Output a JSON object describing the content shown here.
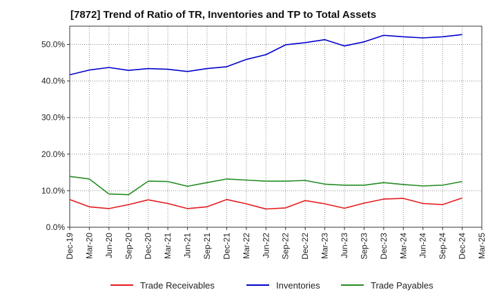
{
  "chart_data": {
    "type": "line",
    "title": "[7872]  Trend of Ratio of TR, Inventories and TP to Total Assets",
    "xlabel": "",
    "ylabel": "",
    "x": [
      "Dec-19",
      "Mar-20",
      "Jun-20",
      "Sep-20",
      "Dec-20",
      "Mar-21",
      "Jun-21",
      "Sep-21",
      "Dec-21",
      "Mar-22",
      "Jun-22",
      "Sep-22",
      "Dec-22",
      "Mar-23",
      "Jun-23",
      "Sep-23",
      "Dec-23",
      "Mar-24",
      "Jun-24",
      "Sep-24",
      "Dec-24",
      "Mar-25"
    ],
    "ylim": [
      0,
      55
    ],
    "yticks": [
      0,
      10,
      20,
      30,
      40,
      50
    ],
    "ytick_labels": [
      "0.0%",
      "10.0%",
      "20.0%",
      "30.0%",
      "40.0%",
      "50.0%"
    ],
    "grid": true,
    "legend_position": "bottom",
    "series": [
      {
        "name": "Trade Receivables",
        "color": "#e31a1c",
        "values": [
          7.6,
          5.6,
          5.1,
          6.2,
          7.5,
          6.5,
          5.1,
          5.6,
          7.6,
          6.4,
          5.0,
          5.3,
          7.3,
          6.4,
          5.2,
          6.6,
          7.7,
          7.9,
          6.5,
          6.2,
          8.0,
          null
        ]
      },
      {
        "name": "Inventories",
        "color": "#0000cc",
        "values": [
          41.7,
          43.0,
          43.7,
          42.9,
          43.4,
          43.2,
          42.6,
          43.4,
          43.9,
          45.9,
          47.2,
          49.9,
          50.5,
          51.3,
          49.6,
          50.7,
          52.5,
          52.1,
          51.8,
          52.1,
          52.7,
          null
        ]
      },
      {
        "name": "Trade Payables",
        "color": "#228b22",
        "values": [
          13.9,
          13.2,
          9.1,
          8.9,
          12.6,
          12.5,
          11.2,
          12.2,
          13.2,
          12.9,
          12.6,
          12.6,
          12.8,
          11.8,
          11.5,
          11.5,
          12.2,
          11.7,
          11.3,
          11.5,
          12.5,
          null
        ]
      }
    ]
  }
}
